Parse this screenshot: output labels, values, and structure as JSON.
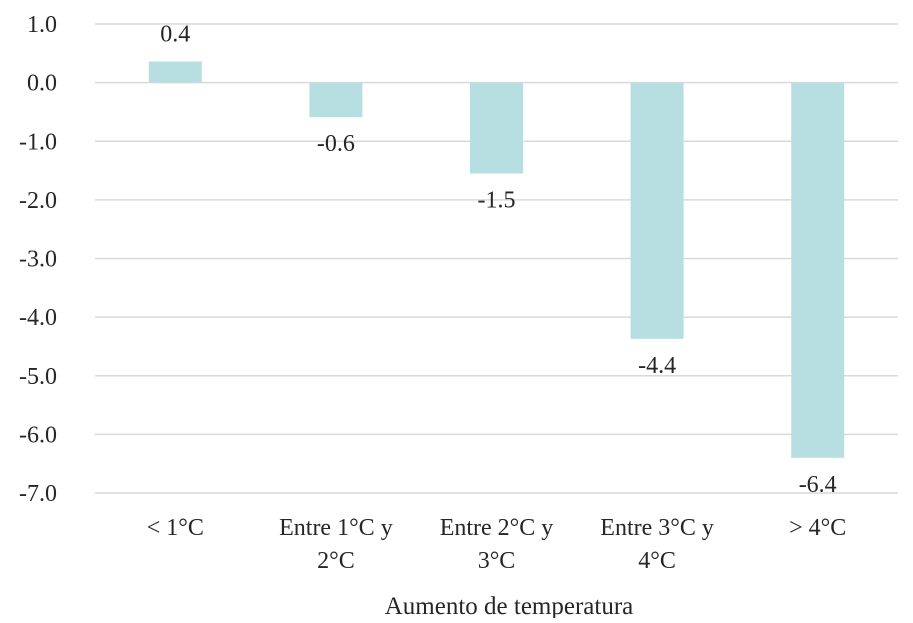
{
  "chart_data": {
    "type": "bar",
    "categories": [
      [
        "< 1°C"
      ],
      [
        "Entre 1°C y",
        "2°C"
      ],
      [
        "Entre 2°C y",
        "3°C"
      ],
      [
        "Entre 3°C y",
        "4°C"
      ],
      [
        "> 4°C"
      ]
    ],
    "values": [
      0.36,
      -0.59,
      -1.55,
      -4.37,
      -6.4
    ],
    "data_labels": [
      "0.4",
      "-0.6",
      "-1.5",
      "-4.4",
      "-6.4"
    ],
    "title": "",
    "xlabel": "Aumento de temperatura",
    "ylabel": "",
    "ylim": [
      -7.0,
      1.0
    ],
    "yticks": [
      1.0,
      0.0,
      -1.0,
      -2.0,
      -3.0,
      -4.0,
      -5.0,
      -6.0,
      -7.0
    ],
    "ytick_labels": [
      "1.0",
      "0.0",
      "-1.0",
      "-2.0",
      "-3.0",
      "-4.0",
      "-5.0",
      "-6.0",
      "-7.0"
    ],
    "grid": true,
    "legend": "none",
    "bar_color": "#b7dfe1",
    "gridline_color": "#d9d9d9",
    "text_color": "#262626"
  }
}
